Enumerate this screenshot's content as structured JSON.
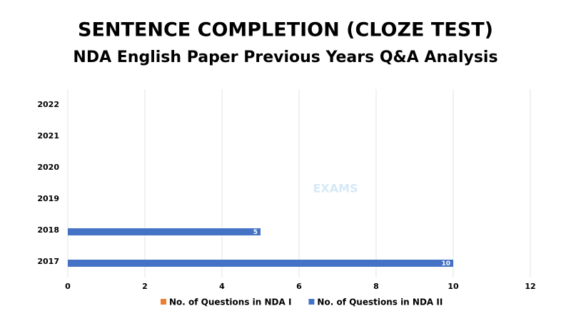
{
  "chart_data": {
    "type": "hbar",
    "title": "SENTENCE COMPLETION (CLOZE TEST)",
    "subtitle": "NDA English Paper Previous Years Q&A Analysis",
    "watermark": "EXAMS",
    "categories": [
      "2017",
      "2018",
      "2019",
      "2020",
      "2021",
      "2022"
    ],
    "series": [
      {
        "name": "No. of Questions in NDA I",
        "color": "#ed7d31",
        "values": [
          null,
          null,
          null,
          null,
          null,
          null
        ]
      },
      {
        "name": "No. of Questions in NDA II",
        "color": "#4472c4",
        "values": [
          10,
          5,
          null,
          null,
          null,
          null
        ]
      }
    ],
    "xlim": [
      0,
      12
    ],
    "xticks": [
      0,
      2,
      4,
      6,
      8,
      10,
      12
    ],
    "grid": true,
    "legend": "bottom"
  }
}
